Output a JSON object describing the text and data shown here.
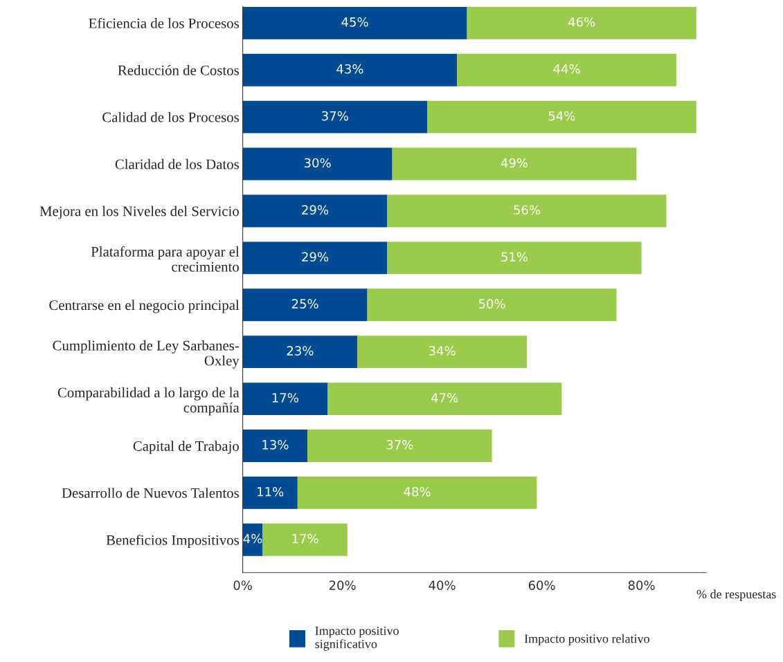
{
  "chart_data": {
    "type": "bar",
    "orientation": "horizontal",
    "stacked": true,
    "categories": [
      "Eficiencia de los Procesos",
      "Reducción de Costos",
      "Calidad de los Procesos",
      "Claridad de los Datos",
      "Mejora en los Niveles del Servicio",
      "Plataforma para apoyar el\ncrecimiento",
      "Centrarse en el negocio principal",
      "Cumplimiento de Ley Sarbanes-\nOxley",
      "Comparabilidad a lo largo de la\ncompañía",
      "Capital de Trabajo",
      "Desarrollo de Nuevos Talentos",
      "Beneficios Impositivos"
    ],
    "series": [
      {
        "name": "Impacto positivo\nsignificativo",
        "color": "#004b93",
        "values": [
          45,
          43,
          37,
          30,
          29,
          29,
          25,
          23,
          17,
          13,
          11,
          4
        ],
        "value_labels": [
          "45%",
          "43%",
          "37%",
          "30%",
          "29%",
          "29%",
          "25%",
          "23%",
          "17%",
          "13%",
          "11%",
          "4%"
        ]
      },
      {
        "name": "Impacto positivo relativo",
        "color": "#9bcb4b",
        "values": [
          46,
          44,
          54,
          49,
          56,
          51,
          50,
          34,
          47,
          37,
          48,
          17
        ],
        "value_labels": [
          "46%",
          "44%",
          "54%",
          "49%",
          "56%",
          "51%",
          "50%",
          "34%",
          "47%",
          "37%",
          "48%",
          "17%"
        ]
      }
    ],
    "xlim": [
      0,
      93
    ],
    "xticks": [
      {
        "value": 0,
        "label": "0%"
      },
      {
        "value": 20,
        "label": "20%"
      },
      {
        "value": 40,
        "label": "40%"
      },
      {
        "value": 60,
        "label": "60%"
      },
      {
        "value": 80,
        "label": "80%"
      }
    ],
    "xlabel": "% de respuestas",
    "grid": false,
    "legend": "bottom"
  }
}
